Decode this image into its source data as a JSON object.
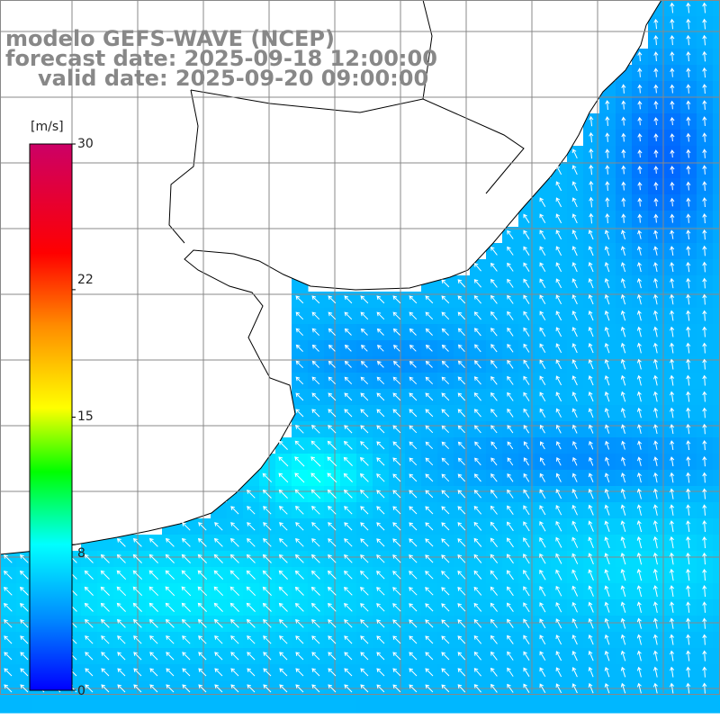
{
  "title": {
    "model": "modelo GEFS-WAVE (NCEP)",
    "forecast": "forecast date: 2025-09-18 12:00:00",
    "valid": "valid date: 2025-09-20 09:00:00"
  },
  "colorbar": {
    "unit": "[m/s]",
    "ticks": [
      "30",
      "22",
      "15",
      "8",
      "0"
    ],
    "tick_values": [
      30,
      22,
      15,
      8,
      0
    ],
    "range": [
      0,
      30
    ],
    "colors": [
      "#0000ff",
      "#0099ff",
      "#00ffff",
      "#00ff00",
      "#ffff00",
      "#ff6600",
      "#ff0000",
      "#cc0066"
    ]
  },
  "colors": {
    "land": "#ffffff",
    "coastline": "#000000",
    "grid": "#888888",
    "arrows": "#ffffff",
    "title": "#888888"
  },
  "field": {
    "type": "wind-speed-and-direction",
    "dominant_direction": "from south-east",
    "speed_range_ms": [
      1,
      10
    ]
  }
}
